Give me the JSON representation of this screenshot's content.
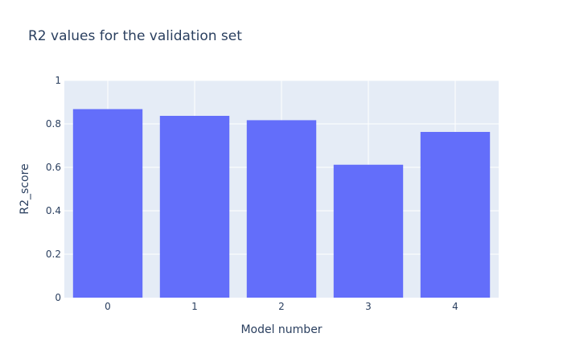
{
  "chart_data": {
    "type": "bar",
    "title": "R2 values for the validation set",
    "xlabel": "Model number",
    "ylabel": "R2_score",
    "categories": [
      "0",
      "1",
      "2",
      "3",
      "4"
    ],
    "values": [
      0.868,
      0.837,
      0.817,
      0.612,
      0.763
    ],
    "ylim": [
      0,
      1
    ],
    "yticks": [
      0,
      0.2,
      0.4,
      0.6,
      0.8,
      1
    ],
    "ytick_labels": [
      "0",
      "0.2",
      "0.4",
      "0.6",
      "0.8",
      "1"
    ],
    "grid": true,
    "legend": "none",
    "colors": {
      "bar": "#636efa",
      "plot_bg": "#e5ecf6",
      "grid": "#ffffff",
      "text": "#2a3f5f"
    }
  }
}
